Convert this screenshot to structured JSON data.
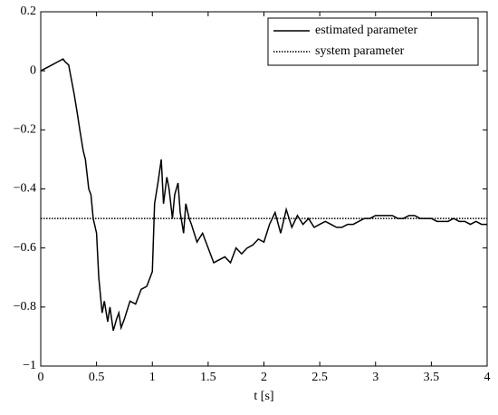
{
  "chart_data": {
    "type": "line",
    "xlabel": "t [s]",
    "xlim": [
      0,
      4
    ],
    "xticks": [
      0,
      0.5,
      1,
      1.5,
      2,
      2.5,
      3,
      3.5,
      4
    ],
    "ylim": [
      -1,
      0.2
    ],
    "yticks": [
      {
        "value": -1,
        "label": "−1"
      },
      {
        "value": -0.8,
        "label": "−0.8"
      },
      {
        "value": -0.6,
        "label": "−0.6"
      },
      {
        "value": -0.4,
        "label": "−0.4"
      },
      {
        "value": -0.2,
        "label": "−0.2"
      },
      0,
      0.2
    ],
    "legend": "upper right",
    "series": [
      {
        "name": "estimated parameter",
        "color": "#000000",
        "linestyle": "solid",
        "x": [
          0,
          0.05,
          0.1,
          0.15,
          0.2,
          0.22,
          0.25,
          0.3,
          0.33,
          0.35,
          0.38,
          0.4,
          0.43,
          0.45,
          0.47,
          0.5,
          0.52,
          0.55,
          0.57,
          0.6,
          0.62,
          0.65,
          0.68,
          0.7,
          0.72,
          0.75,
          0.8,
          0.85,
          0.9,
          0.95,
          1.0,
          1.02,
          1.05,
          1.08,
          1.1,
          1.13,
          1.15,
          1.18,
          1.2,
          1.23,
          1.25,
          1.28,
          1.3,
          1.33,
          1.35,
          1.4,
          1.45,
          1.5,
          1.55,
          1.6,
          1.65,
          1.7,
          1.75,
          1.8,
          1.85,
          1.9,
          1.95,
          2.0,
          2.05,
          2.1,
          2.15,
          2.2,
          2.25,
          2.3,
          2.35,
          2.4,
          2.45,
          2.5,
          2.55,
          2.6,
          2.65,
          2.7,
          2.75,
          2.8,
          2.85,
          2.9,
          2.95,
          3.0,
          3.05,
          3.1,
          3.15,
          3.2,
          3.25,
          3.3,
          3.35,
          3.4,
          3.45,
          3.5,
          3.55,
          3.6,
          3.65,
          3.7,
          3.75,
          3.8,
          3.85,
          3.9,
          3.95,
          4.0
        ],
        "values": [
          0,
          0.01,
          0.02,
          0.03,
          0.04,
          0.03,
          0.02,
          -0.08,
          -0.15,
          -0.2,
          -0.27,
          -0.3,
          -0.4,
          -0.42,
          -0.5,
          -0.55,
          -0.7,
          -0.82,
          -0.78,
          -0.85,
          -0.8,
          -0.88,
          -0.84,
          -0.82,
          -0.87,
          -0.84,
          -0.78,
          -0.79,
          -0.74,
          -0.73,
          -0.68,
          -0.45,
          -0.38,
          -0.3,
          -0.45,
          -0.36,
          -0.4,
          -0.5,
          -0.42,
          -0.38,
          -0.48,
          -0.55,
          -0.45,
          -0.5,
          -0.52,
          -0.58,
          -0.55,
          -0.6,
          -0.65,
          -0.64,
          -0.63,
          -0.65,
          -0.6,
          -0.62,
          -0.6,
          -0.59,
          -0.57,
          -0.58,
          -0.52,
          -0.48,
          -0.55,
          -0.47,
          -0.53,
          -0.49,
          -0.52,
          -0.5,
          -0.53,
          -0.52,
          -0.51,
          -0.52,
          -0.53,
          -0.53,
          -0.52,
          -0.52,
          -0.51,
          -0.5,
          -0.5,
          -0.49,
          -0.49,
          -0.49,
          -0.49,
          -0.5,
          -0.5,
          -0.49,
          -0.49,
          -0.5,
          -0.5,
          -0.5,
          -0.51,
          -0.51,
          -0.51,
          -0.5,
          -0.51,
          -0.51,
          -0.52,
          -0.51,
          -0.52,
          -0.52
        ]
      },
      {
        "name": "system parameter",
        "color": "#000000",
        "linestyle": "dotted",
        "x": [
          0,
          4
        ],
        "values": [
          -0.5,
          -0.5
        ]
      }
    ]
  }
}
